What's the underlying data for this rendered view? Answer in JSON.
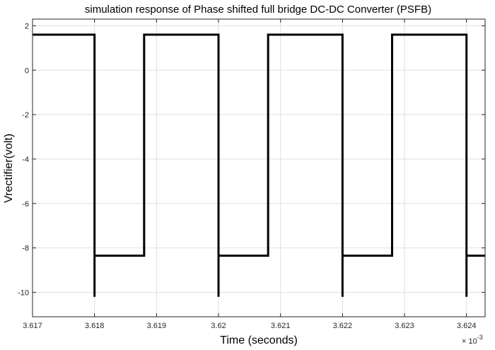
{
  "chart_data": {
    "type": "line",
    "title": "simulation response of Phase shifted full bridge DC-DC Converter (PSFB)",
    "xlabel": "Time (seconds)",
    "ylabel": "Vrectifier(volt)",
    "x_exponent_base": "× 10",
    "x_exponent_power": "-3",
    "xlim": [
      3.617,
      3.6243
    ],
    "ylim": [
      -11.1,
      2.3
    ],
    "xticks": [
      3.617,
      3.618,
      3.619,
      3.62,
      3.621,
      3.622,
      3.623,
      3.624
    ],
    "xtick_labels": [
      "3.617",
      "3.618",
      "3.619",
      "3.62",
      "3.621",
      "3.622",
      "3.623",
      "3.624"
    ],
    "yticks": [
      2,
      0,
      -2,
      -4,
      -6,
      -8,
      -10
    ],
    "ytick_labels": [
      "2",
      "0",
      "-2",
      "-4",
      "-6",
      "-8",
      "-10"
    ],
    "grid": true,
    "series": [
      {
        "color": "#000000",
        "x": [
          3.617,
          3.618,
          3.618,
          3.618,
          3.6188,
          3.6188,
          3.62,
          3.62,
          3.62,
          3.6208,
          3.6208,
          3.622,
          3.622,
          3.622,
          3.6228,
          3.6228,
          3.624,
          3.624,
          3.624,
          3.6243
        ],
        "y": [
          1.6,
          1.6,
          -10.2,
          -8.35,
          -8.35,
          1.6,
          1.6,
          -10.2,
          -8.35,
          -8.35,
          1.6,
          1.6,
          -10.2,
          -8.35,
          -8.35,
          1.6,
          1.6,
          -10.2,
          -8.35,
          -8.35
        ]
      }
    ]
  }
}
